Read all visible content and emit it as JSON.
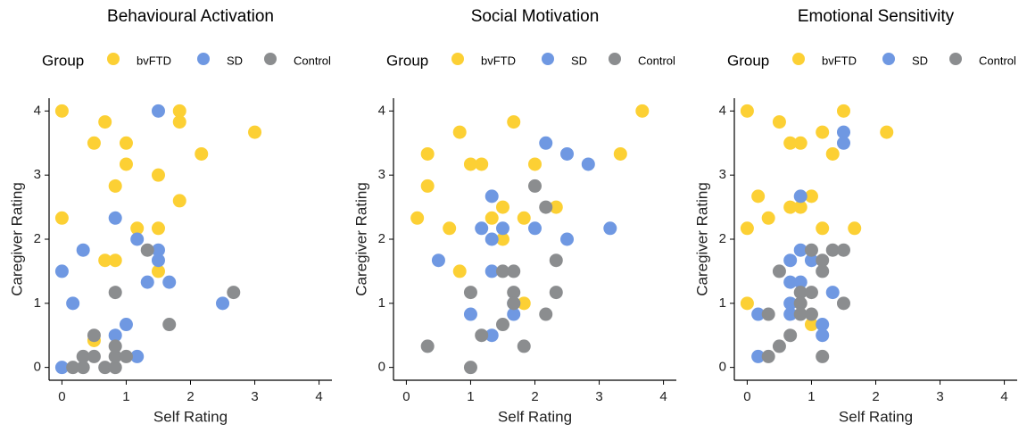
{
  "chart_data": [
    {
      "type": "scatter",
      "title": "Behavioural Activation",
      "legend_title": "Group",
      "xlabel": "Self Rating",
      "ylabel": "Caregiver Rating",
      "xlim": [
        -0.2,
        4.2
      ],
      "ylim": [
        -0.2,
        4.2
      ],
      "xticks": [
        0,
        1,
        2,
        3,
        4
      ],
      "yticks": [
        0,
        1,
        2,
        3,
        4
      ],
      "series": [
        {
          "name": "bvFTD",
          "color": "#fcd034",
          "x": [
            0,
            0,
            0.5,
            0.67,
            1,
            1,
            0.83,
            0.67,
            0.83,
            1.17,
            1.5,
            1.5,
            1.5,
            1.83,
            1.83,
            1.83,
            2.17,
            3,
            0.5
          ],
          "values": [
            4,
            2.33,
            3.5,
            3.83,
            3.5,
            3.17,
            2.83,
            1.67,
            1.67,
            2.17,
            3,
            2.17,
            1.5,
            4,
            3.83,
            2.6,
            3.33,
            3.67,
            0.42
          ]
        },
        {
          "name": "SD",
          "color": "#6f98e2",
          "x": [
            0,
            0,
            0.17,
            0.33,
            0.83,
            0.83,
            1,
            1.17,
            1.33,
            1.5,
            1.5,
            1.5,
            1.67,
            2.5,
            1.17
          ],
          "values": [
            1.5,
            0,
            1,
            1.83,
            2.33,
            0.5,
            0.67,
            2,
            1.33,
            4,
            1.83,
            1.67,
            1.33,
            1,
            0.17
          ]
        },
        {
          "name": "Control",
          "color": "#8b8d8f",
          "x": [
            0.17,
            0.33,
            0.33,
            0.5,
            0.5,
            0.67,
            0.83,
            0.83,
            0.83,
            0.83,
            1,
            1.33,
            1.67,
            2.67
          ],
          "values": [
            0,
            0,
            0.17,
            0.5,
            0.17,
            0,
            0,
            0.17,
            0.33,
            1.17,
            0.17,
            1.83,
            0.67,
            1.17
          ]
        }
      ]
    },
    {
      "type": "scatter",
      "title": "Social Motivation",
      "legend_title": "Group",
      "xlabel": "Self Rating",
      "ylabel": "Caregiver Rating",
      "xlim": [
        -0.2,
        4.2
      ],
      "ylim": [
        -0.2,
        4.2
      ],
      "xticks": [
        0,
        1,
        2,
        3,
        4
      ],
      "yticks": [
        0,
        1,
        2,
        3,
        4
      ],
      "series": [
        {
          "name": "bvFTD",
          "color": "#fcd034",
          "x": [
            0.17,
            0.33,
            0.33,
            0.67,
            0.83,
            0.83,
            1,
            1.17,
            1.33,
            1.5,
            1.5,
            1.67,
            1.83,
            1.83,
            2,
            2.33,
            3.33,
            3.67
          ],
          "values": [
            2.33,
            3.33,
            2.83,
            2.17,
            3.67,
            1.5,
            3.17,
            3.17,
            2.33,
            2.5,
            2,
            3.83,
            2.33,
            1,
            3.17,
            2.5,
            3.33,
            4
          ]
        },
        {
          "name": "SD",
          "color": "#6f98e2",
          "x": [
            0.5,
            1,
            1.17,
            1.33,
            1.33,
            1.33,
            1.33,
            1.5,
            1.67,
            1.67,
            2,
            2.17,
            2.5,
            2.5,
            2.83,
            3.17
          ],
          "values": [
            1.67,
            0.83,
            2.17,
            2.67,
            2,
            1.5,
            0.5,
            2.17,
            0.83,
            1,
            2.17,
            3.5,
            3.33,
            2,
            3.17,
            2.17
          ]
        },
        {
          "name": "Control",
          "color": "#8b8d8f",
          "x": [
            0.33,
            1,
            1,
            1.17,
            1.5,
            1.5,
            1.67,
            1.67,
            1.67,
            1.83,
            2,
            2.17,
            2.17,
            2.33,
            2.33
          ],
          "values": [
            0.33,
            0,
            1.17,
            0.5,
            1.5,
            0.67,
            1.5,
            1.17,
            1,
            0.33,
            2.83,
            2.5,
            0.83,
            1.67,
            1.17
          ]
        }
      ]
    },
    {
      "type": "scatter",
      "title": "Emotional Sensitivity",
      "legend_title": "Group",
      "xlabel": "Self Rating",
      "ylabel": "Caregiver Rating",
      "xlim": [
        -0.2,
        4.2
      ],
      "ylim": [
        -0.2,
        4.2
      ],
      "xticks": [
        0,
        1,
        2,
        3,
        4
      ],
      "yticks": [
        0,
        1,
        2,
        3,
        4
      ],
      "series": [
        {
          "name": "bvFTD",
          "color": "#fcd034",
          "x": [
            0,
            0,
            0,
            0.17,
            0.33,
            0.5,
            0.67,
            0.83,
            0.67,
            0.83,
            1,
            1.17,
            1.17,
            1.33,
            1.5,
            1.67,
            2.17,
            1
          ],
          "values": [
            4,
            2.17,
            1,
            2.67,
            2.33,
            3.83,
            3.5,
            3.5,
            2.5,
            2.5,
            2.67,
            3.67,
            2.17,
            3.33,
            4,
            2.17,
            3.67,
            0.67
          ]
        },
        {
          "name": "SD",
          "color": "#6f98e2",
          "x": [
            0.17,
            0.17,
            0.67,
            0.67,
            0.67,
            0.67,
            0.83,
            0.83,
            0.83,
            1,
            1.17,
            1.17,
            1.33,
            1.5,
            1.5
          ],
          "values": [
            0.83,
            0.17,
            1.67,
            1.33,
            1,
            0.83,
            1.83,
            2.67,
            1.33,
            1.67,
            0.67,
            0.5,
            1.17,
            3.67,
            3.5
          ]
        },
        {
          "name": "Control",
          "color": "#8b8d8f",
          "x": [
            0.33,
            0.33,
            0.5,
            0.5,
            0.67,
            0.83,
            0.83,
            0.83,
            1,
            1,
            1,
            1.17,
            1.17,
            1.17,
            1.33,
            1.5,
            1.5
          ],
          "values": [
            0.83,
            0.17,
            1.5,
            0.33,
            0.5,
            1.17,
            1,
            0.83,
            1.83,
            1.17,
            0.83,
            1.67,
            1.5,
            0.17,
            1.83,
            1.83,
            1
          ]
        }
      ]
    }
  ]
}
